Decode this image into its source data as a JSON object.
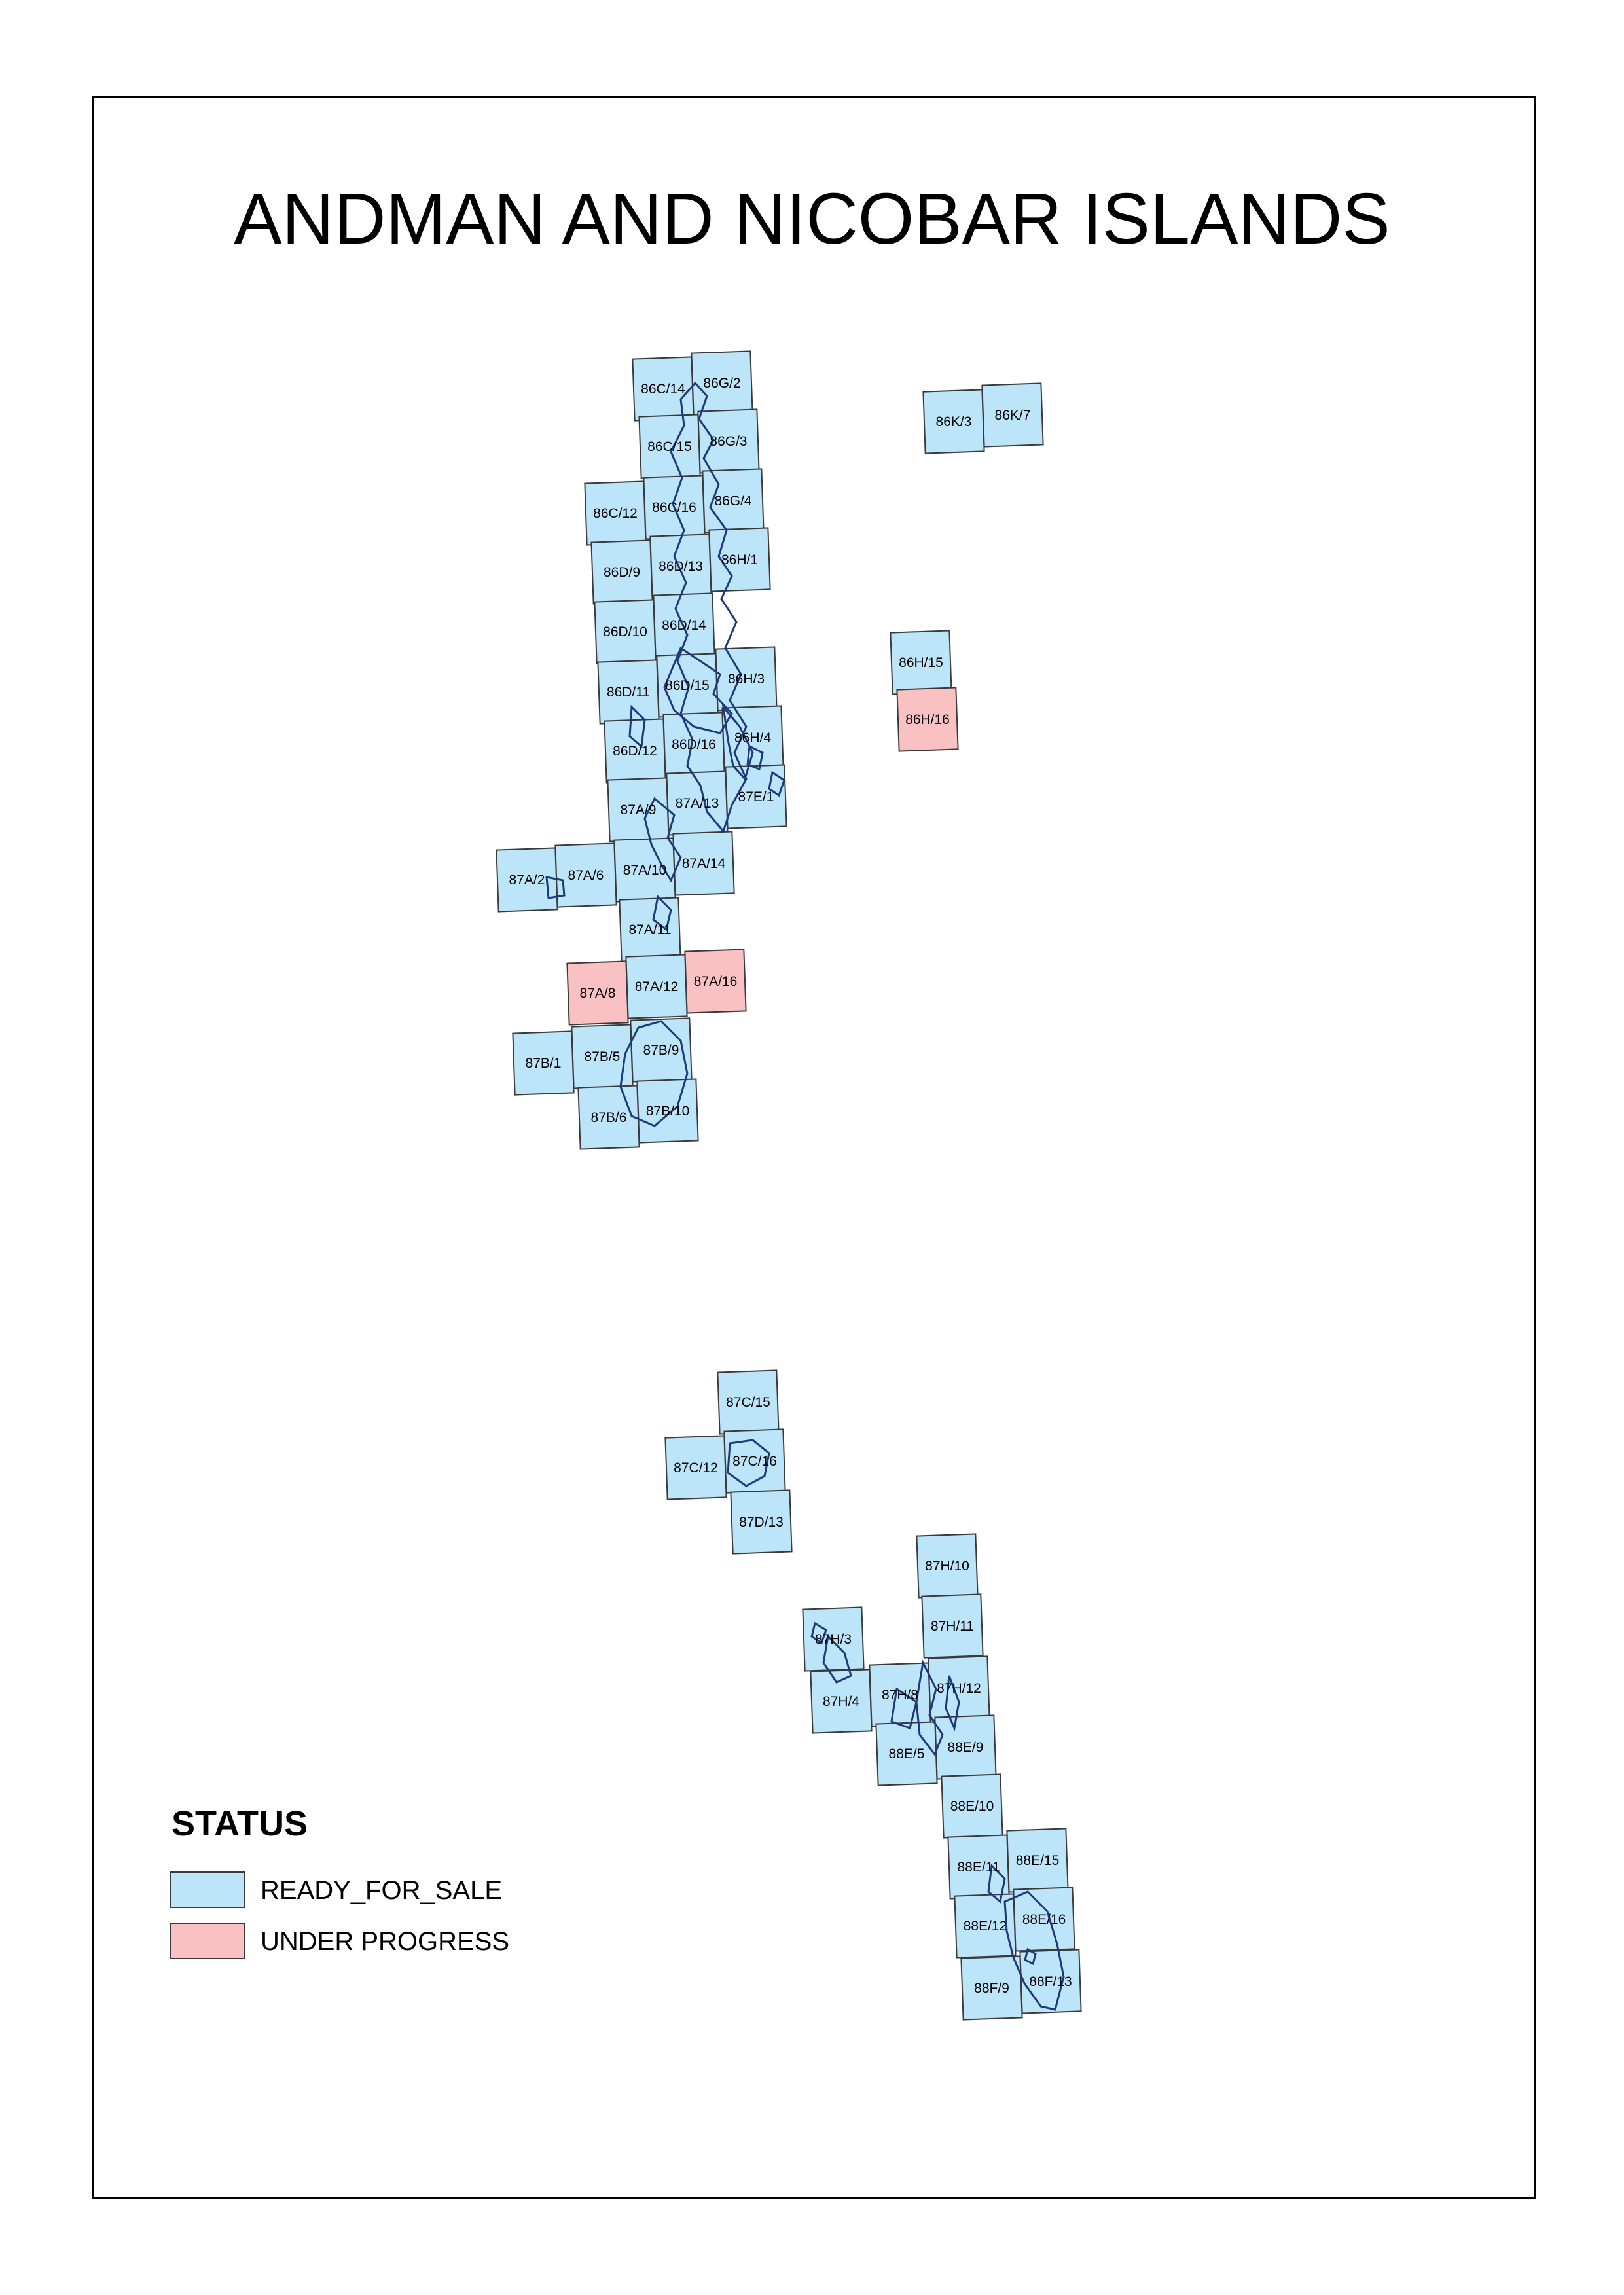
{
  "title": "ANDMAN AND NICOBAR ISLANDS",
  "legend": {
    "title": "STATUS",
    "items": [
      {
        "label": "READY_FOR_SALE",
        "color": "#bde5fa"
      },
      {
        "label": "UNDER PROGRESS",
        "color": "#f9c1c1"
      }
    ]
  },
  "colors": {
    "ready": "#bde5fa",
    "progress": "#f9c1c1",
    "border": "#3a3a3a",
    "coast": "#1f3a7a"
  },
  "sheets": [
    {
      "id": "86C/14",
      "status": "ready"
    },
    {
      "id": "86G/2",
      "status": "ready"
    },
    {
      "id": "86C/15",
      "status": "ready"
    },
    {
      "id": "86G/3",
      "status": "ready"
    },
    {
      "id": "86C/12",
      "status": "ready"
    },
    {
      "id": "86C/16",
      "status": "ready"
    },
    {
      "id": "86G/4",
      "status": "ready"
    },
    {
      "id": "86D/9",
      "status": "ready"
    },
    {
      "id": "86D/13",
      "status": "ready"
    },
    {
      "id": "86H/1",
      "status": "ready"
    },
    {
      "id": "86D/10",
      "status": "ready"
    },
    {
      "id": "86D/14",
      "status": "ready"
    },
    {
      "id": "86D/11",
      "status": "ready"
    },
    {
      "id": "86D/15",
      "status": "ready"
    },
    {
      "id": "86H/3",
      "status": "ready"
    },
    {
      "id": "86D/12",
      "status": "ready"
    },
    {
      "id": "86D/16",
      "status": "ready"
    },
    {
      "id": "86H/4",
      "status": "ready"
    },
    {
      "id": "87A/9",
      "status": "ready"
    },
    {
      "id": "87A/13",
      "status": "ready"
    },
    {
      "id": "87E/1",
      "status": "ready"
    },
    {
      "id": "87A/2",
      "status": "ready"
    },
    {
      "id": "87A/6",
      "status": "ready"
    },
    {
      "id": "87A/10",
      "status": "ready"
    },
    {
      "id": "87A/14",
      "status": "ready"
    },
    {
      "id": "87A/11",
      "status": "ready"
    },
    {
      "id": "87A/8",
      "status": "progress"
    },
    {
      "id": "87A/12",
      "status": "ready"
    },
    {
      "id": "87A/16",
      "status": "progress"
    },
    {
      "id": "87B/1",
      "status": "ready"
    },
    {
      "id": "87B/5",
      "status": "ready"
    },
    {
      "id": "87B/9",
      "status": "ready"
    },
    {
      "id": "87B/6",
      "status": "ready"
    },
    {
      "id": "87B/10",
      "status": "ready"
    },
    {
      "id": "86K/3",
      "status": "ready"
    },
    {
      "id": "86K/7",
      "status": "ready"
    },
    {
      "id": "86H/15",
      "status": "ready"
    },
    {
      "id": "86H/16",
      "status": "progress"
    },
    {
      "id": "87C/15",
      "status": "ready"
    },
    {
      "id": "87C/12",
      "status": "ready"
    },
    {
      "id": "87C/16",
      "status": "ready"
    },
    {
      "id": "87D/13",
      "status": "ready"
    },
    {
      "id": "87H/10",
      "status": "ready"
    },
    {
      "id": "87H/11",
      "status": "ready"
    },
    {
      "id": "87H/3",
      "status": "ready"
    },
    {
      "id": "87H/4",
      "status": "ready"
    },
    {
      "id": "87H/8",
      "status": "ready"
    },
    {
      "id": "87H/12",
      "status": "ready"
    },
    {
      "id": "88E/5",
      "status": "ready"
    },
    {
      "id": "88E/9",
      "status": "ready"
    },
    {
      "id": "88E/10",
      "status": "ready"
    },
    {
      "id": "88E/11",
      "status": "ready"
    },
    {
      "id": "88E/15",
      "status": "ready"
    },
    {
      "id": "88E/12",
      "status": "ready"
    },
    {
      "id": "88E/16",
      "status": "ready"
    },
    {
      "id": "88F/9",
      "status": "ready"
    },
    {
      "id": "88F/13",
      "status": "ready"
    }
  ]
}
